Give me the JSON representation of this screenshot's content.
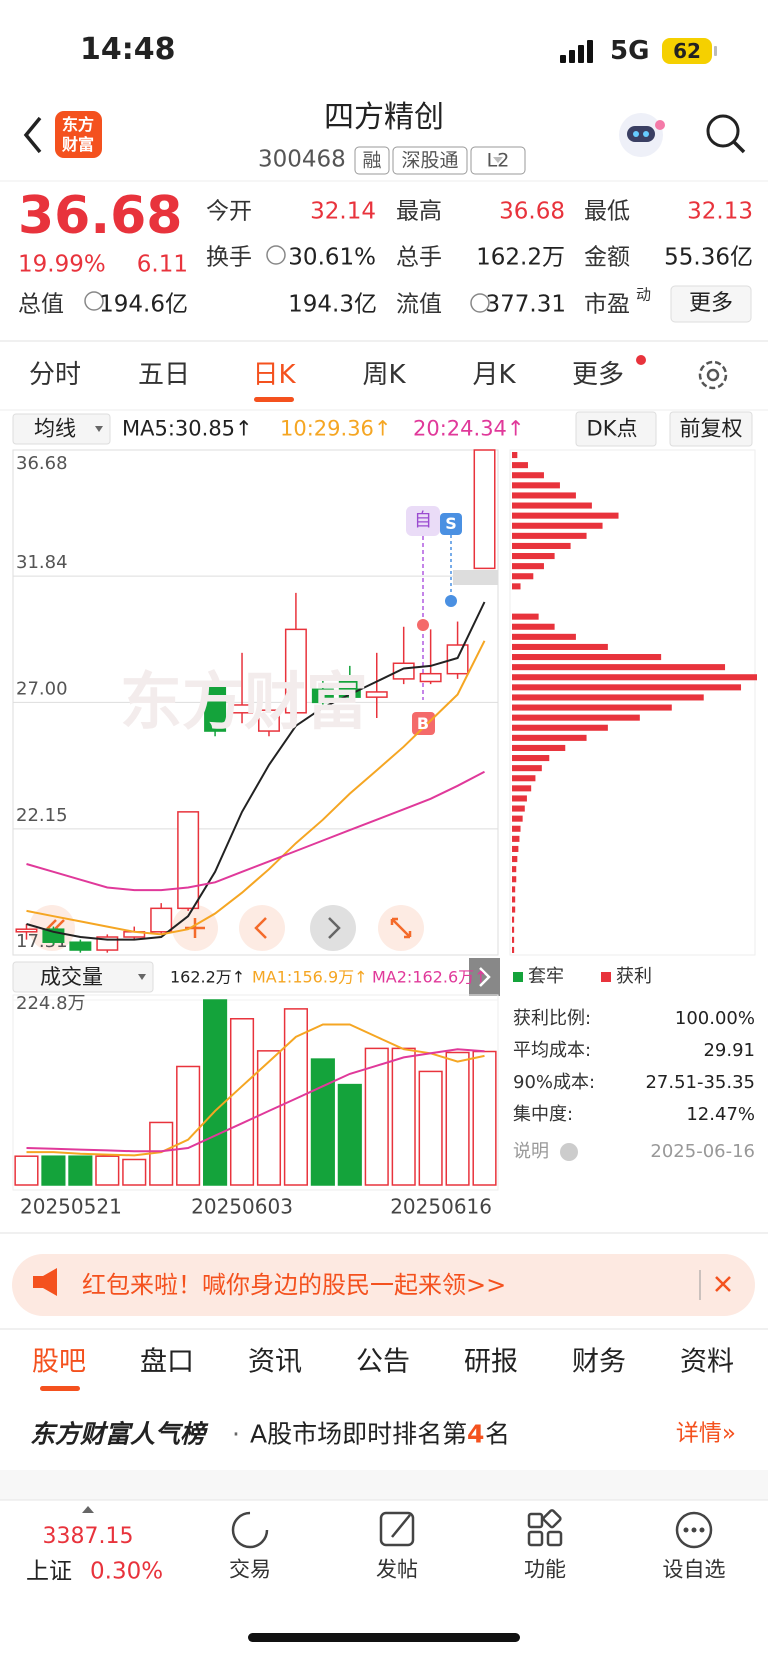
{
  "status_bar": {
    "time": "14:48",
    "network": "5G",
    "battery": "62"
  },
  "header": {
    "logo": [
      "东方",
      "财富"
    ],
    "title": "四方精创",
    "code": "300468",
    "badges": [
      "融",
      "深股通",
      "L2"
    ]
  },
  "quote": {
    "price": "36.68",
    "change_pct": "19.99%",
    "change": "6.11",
    "rows": [
      [
        {
          "label": "今开",
          "value": "32.14",
          "up": true
        },
        {
          "label": "最高",
          "value": "36.68",
          "up": true
        },
        {
          "label": "最低",
          "value": "32.13",
          "up": true
        }
      ],
      [
        {
          "label": "换手",
          "value": "30.61%",
          "up": false
        },
        {
          "label": "总手",
          "value": "162.2万",
          "up": false
        },
        {
          "label": "金额",
          "value": "55.36亿",
          "up": false
        }
      ],
      [
        {
          "label": "总值",
          "value": "194.6亿",
          "up": false
        },
        {
          "label": "流值",
          "value": "194.3亿",
          "up": false
        },
        {
          "label": "市盈",
          "sup": "动",
          "value": "377.31",
          "up": false
        }
      ]
    ],
    "more": "更多"
  },
  "tabs": [
    "分时",
    "五日",
    "日K",
    "周K",
    "月K",
    "更多"
  ],
  "active_tab": 2,
  "kline_bar": {
    "selector": "均线",
    "ma_labels": [
      "MA5:30.85↑",
      "10:29.36↑",
      "20:24.34↑"
    ],
    "dk": "DK点",
    "adjust": "前复权",
    "watermark": "东方财富",
    "markers": [
      "自",
      "S",
      "B"
    ]
  },
  "chart_data": [
    {
      "type": "candlestick",
      "ylim": [
        17.31,
        36.68
      ],
      "yticks": [
        36.68,
        31.84,
        {
          "value": 27,
          "label": "27.00"
        },
        22.15,
        17.31
      ],
      "grid": true,
      "up_color": "#e8333c",
      "down_color": "#14a33b",
      "open": [
        18.2,
        18.3,
        17.8,
        17.5,
        18.0,
        18.2,
        19.1,
        27.6,
        26.6,
        25.9,
        26.6,
        27.5,
        28.0,
        27.2,
        27.9,
        27.8,
        28.1,
        32.14
      ],
      "high": [
        18.5,
        18.4,
        17.9,
        18.1,
        18.4,
        19.3,
        22.8,
        27.7,
        28.9,
        27.0,
        31.2,
        27.9,
        28.4,
        28.9,
        29.9,
        29.8,
        30.1,
        36.68
      ],
      "low": [
        17.9,
        17.7,
        17.4,
        17.4,
        17.9,
        18.1,
        19.0,
        25.7,
        26.2,
        25.7,
        26.4,
        26.9,
        27.1,
        26.4,
        27.7,
        27.7,
        27.9,
        32.13
      ],
      "close": [
        18.3,
        17.8,
        17.5,
        18.0,
        18.2,
        19.1,
        22.8,
        25.9,
        26.9,
        26.7,
        29.8,
        27.0,
        27.2,
        27.4,
        28.5,
        28.1,
        29.2,
        36.68
      ],
      "series": [
        {
          "name": "MA5",
          "color": "#222222",
          "values": [
            18.5,
            18.2,
            18.0,
            17.9,
            17.9,
            18.0,
            18.8,
            20.5,
            22.8,
            24.6,
            26.1,
            26.8,
            27.3,
            27.8,
            28.3,
            28.4,
            28.7,
            30.85
          ]
        },
        {
          "name": "MA10",
          "color": "#f5a623",
          "values": [
            19.0,
            18.8,
            18.6,
            18.4,
            18.2,
            18.1,
            18.3,
            18.9,
            19.7,
            20.6,
            21.6,
            22.5,
            23.5,
            24.4,
            25.3,
            26.3,
            27.3,
            29.36
          ]
        },
        {
          "name": "MA20",
          "color": "#e0399a",
          "values": [
            20.8,
            20.5,
            20.2,
            19.9,
            19.8,
            19.8,
            19.9,
            20.1,
            20.5,
            20.9,
            21.3,
            21.7,
            22.1,
            22.5,
            22.9,
            23.3,
            23.8,
            24.34
          ]
        }
      ]
    },
    {
      "type": "bar",
      "title": "成交量",
      "legend_labels": [
        "162.2万↑",
        "MA1:156.9万↑",
        "MA2:162.6万↑"
      ],
      "categories": [
        "20250521",
        null,
        null,
        null,
        null,
        null,
        null,
        null,
        "20250603",
        null,
        null,
        null,
        null,
        null,
        null,
        null,
        null,
        "20250616"
      ],
      "ylim": [
        0,
        224.8
      ],
      "yticks": [
        {
          "value": 224.8,
          "label": "224.8万"
        }
      ],
      "values": [
        35,
        35,
        35,
        35,
        31,
        76,
        144,
        224.8,
        202,
        163,
        214,
        153,
        122,
        166,
        166,
        138,
        161,
        162.2
      ],
      "series": [
        {
          "name": "MA1",
          "color": "#f5a623",
          "values": [
            40,
            40,
            38,
            37,
            36,
            40,
            55,
            90,
            120,
            150,
            180,
            195,
            195,
            180,
            165,
            160,
            150,
            156.9
          ]
        },
        {
          "name": "MA2",
          "color": "#e0399a",
          "values": [
            45,
            44,
            43,
            42,
            41,
            41,
            45,
            60,
            75,
            90,
            105,
            120,
            135,
            145,
            155,
            160,
            165,
            162.6
          ]
        }
      ]
    },
    {
      "type": "profile",
      "color": "#e8333c",
      "values": [
        5,
        15,
        30,
        45,
        60,
        75,
        100,
        85,
        70,
        55,
        40,
        30,
        20,
        8,
        0,
        0,
        25,
        40,
        60,
        90,
        140,
        200,
        230,
        215,
        180,
        150,
        120,
        90,
        70,
        50,
        35,
        28,
        22,
        18,
        14,
        12,
        10,
        8,
        7,
        6,
        5,
        4,
        4,
        3,
        3,
        3,
        2,
        2,
        2,
        2
      ]
    }
  ],
  "chips": {
    "legend": [
      "套牢",
      "获利"
    ],
    "stats": [
      {
        "label": "获利比例:",
        "value": "100.00%"
      },
      {
        "label": "平均成本:",
        "value": "29.91"
      },
      {
        "label": "90%成本:",
        "value": "27.51-35.35"
      },
      {
        "label": "集中度:",
        "value": "12.47%"
      }
    ],
    "note": "说明",
    "date": "2025-06-16"
  },
  "banner": "红包来啦！喊你身边的股民一起来领>>",
  "sections": [
    "股吧",
    "盘口",
    "资讯",
    "公告",
    "研报",
    "财务",
    "资料"
  ],
  "active_section": 0,
  "ranking": {
    "title": "东方财富人气榜",
    "sep": "·",
    "text": "A股市场即时排名第",
    "rank": "4",
    "suffix": "名",
    "link": "详情»"
  },
  "footer": {
    "index_value": "3387.15",
    "index_name": "上证",
    "index_change": "0.30%",
    "items": [
      "交易",
      "发帖",
      "功能",
      "设自选"
    ]
  }
}
